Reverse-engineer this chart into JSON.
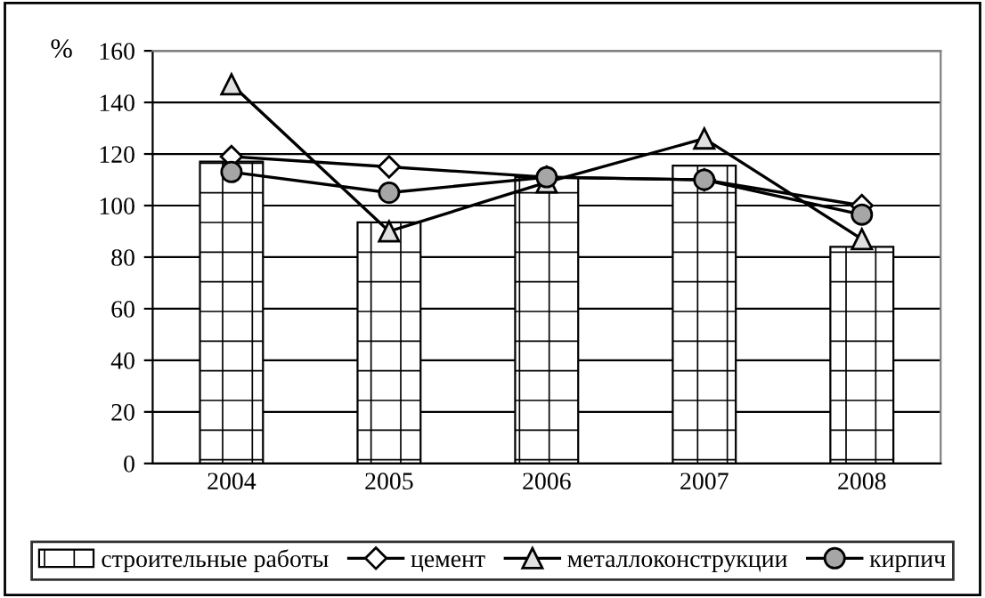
{
  "chart_data": {
    "type": "bar",
    "ylabel": "%",
    "categories": [
      "2004",
      "2005",
      "2006",
      "2007",
      "2008"
    ],
    "ylim": [
      0,
      160
    ],
    "yticks": [
      0,
      20,
      40,
      60,
      80,
      100,
      120,
      140,
      160
    ],
    "grid": "y",
    "legend": "bottom",
    "series": [
      {
        "name": "строительные работы",
        "color": "#000000",
        "values": [
          117,
          93.5,
          111,
          115.5,
          84
        ]
      },
      {
        "name": "цемент",
        "type": "line",
        "marker": "diamond",
        "color": "#ffffff",
        "values": [
          119,
          115,
          111,
          110,
          100
        ]
      },
      {
        "name": "металлоконструкции",
        "type": "line",
        "marker": "triangle",
        "color": "#e0e0e0",
        "values": [
          147,
          90,
          109,
          126,
          87
        ]
      },
      {
        "name": "кирпич",
        "type": "line",
        "marker": "circle",
        "color": "#a6a6a6",
        "values": [
          113,
          105,
          111,
          110,
          96.5
        ]
      }
    ]
  }
}
